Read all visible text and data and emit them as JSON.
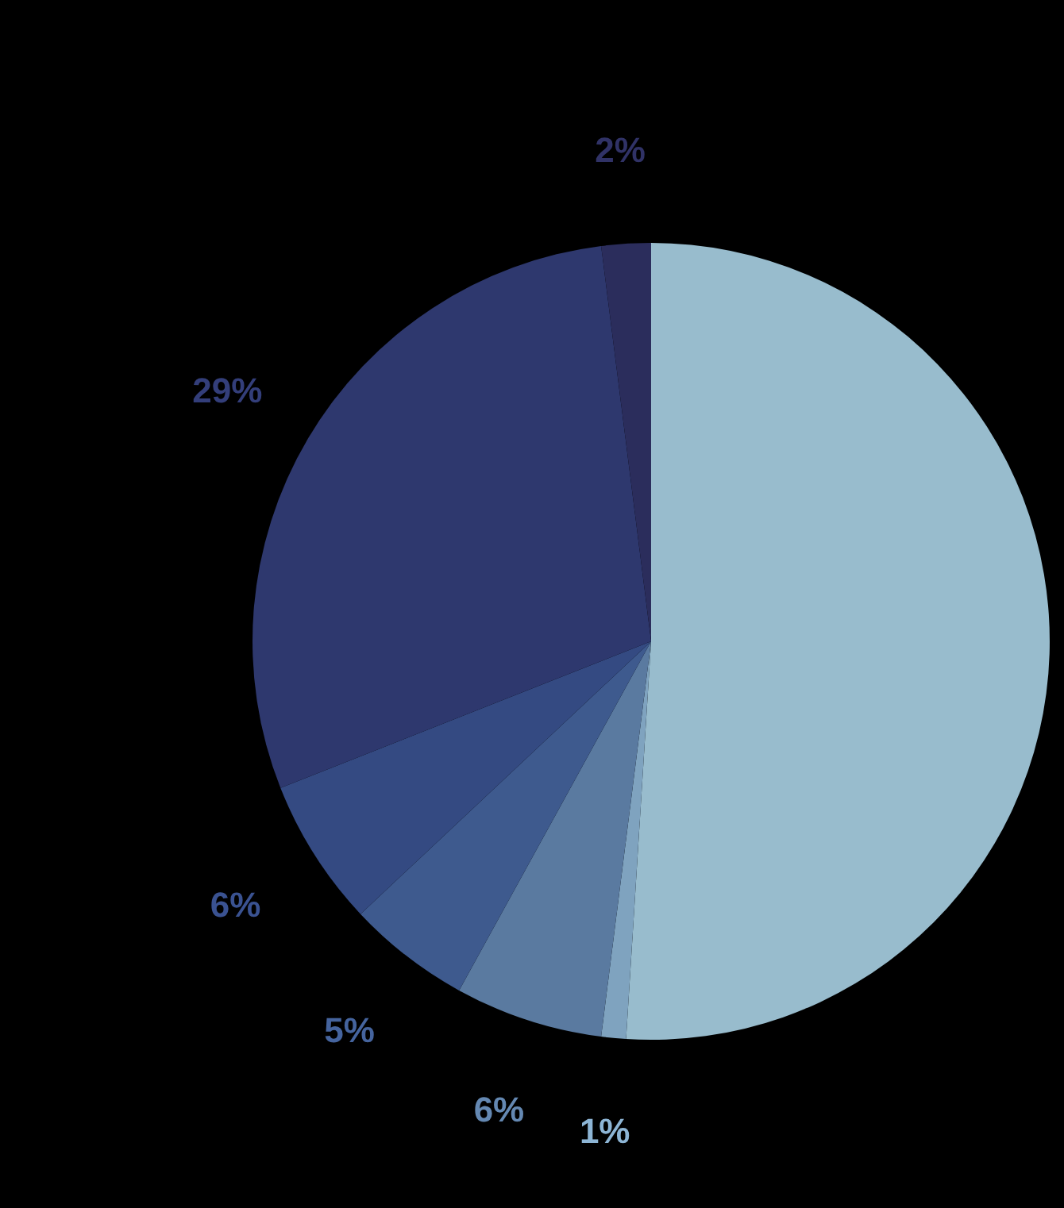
{
  "chart_data": {
    "type": "pie",
    "categories": [
      null,
      null,
      null,
      null,
      null,
      null,
      null
    ],
    "values": [
      51,
      1,
      6,
      5,
      6,
      29,
      2
    ],
    "colors": [
      "#98bccd",
      "#7fa3bf",
      "#5a7aa0",
      "#3e5a8e",
      "#344a82",
      "#2e386e",
      "#2b2d5c"
    ],
    "value_labels": [
      null,
      "1%",
      "6%",
      "5%",
      "6%",
      "29%",
      "2%"
    ]
  }
}
